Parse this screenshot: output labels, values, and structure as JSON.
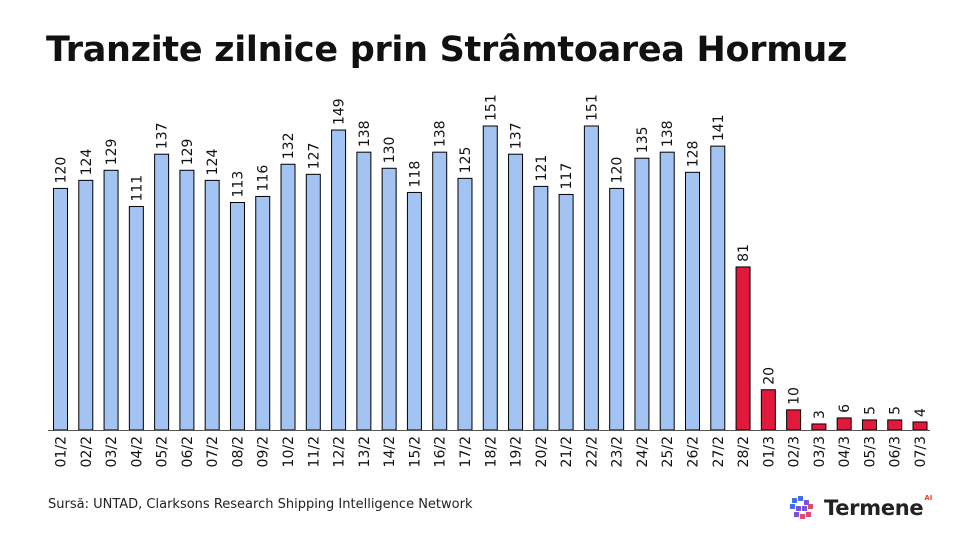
{
  "title": "Tranzite zilnice prin Strâmtoarea Hormuz",
  "source": "Sursă: UNTAD, Clarksons Research Shipping Intelligence Network",
  "logo": {
    "text": "Termene",
    "superscript": "AI",
    "icon": "cube-grid-icon"
  },
  "colors": {
    "normal": "#a3c3f3",
    "highlight": "#e11a3d",
    "outline": "#000000",
    "logo_blue": "#3d6ef2",
    "logo_purple": "#7a4ee0",
    "logo_pink": "#e0486e"
  },
  "chart_data": {
    "type": "bar",
    "title": "Tranzite zilnice prin Strâmtoarea Hormuz",
    "xlabel": "",
    "ylabel": "",
    "categories": [
      "01/2",
      "02/2",
      "03/2",
      "04/2",
      "05/2",
      "06/2",
      "07/2",
      "08/2",
      "09/2",
      "10/2",
      "11/2",
      "12/2",
      "13/2",
      "14/2",
      "15/2",
      "16/2",
      "17/2",
      "18/2",
      "19/2",
      "20/2",
      "21/2",
      "22/2",
      "23/2",
      "24/2",
      "25/2",
      "26/2",
      "27/2",
      "28/2",
      "01/3",
      "02/3",
      "03/3",
      "04/3",
      "05/3",
      "06/3",
      "07/3"
    ],
    "values": [
      120,
      124,
      129,
      111,
      137,
      129,
      124,
      113,
      116,
      132,
      127,
      149,
      138,
      130,
      118,
      138,
      125,
      151,
      137,
      121,
      117,
      151,
      120,
      135,
      138,
      128,
      141,
      81,
      20,
      10,
      3,
      6,
      5,
      5,
      4
    ],
    "highlight_from": "28/2",
    "ylim": [
      0,
      151
    ],
    "grid": false,
    "legend": "none",
    "data_labels": true
  }
}
